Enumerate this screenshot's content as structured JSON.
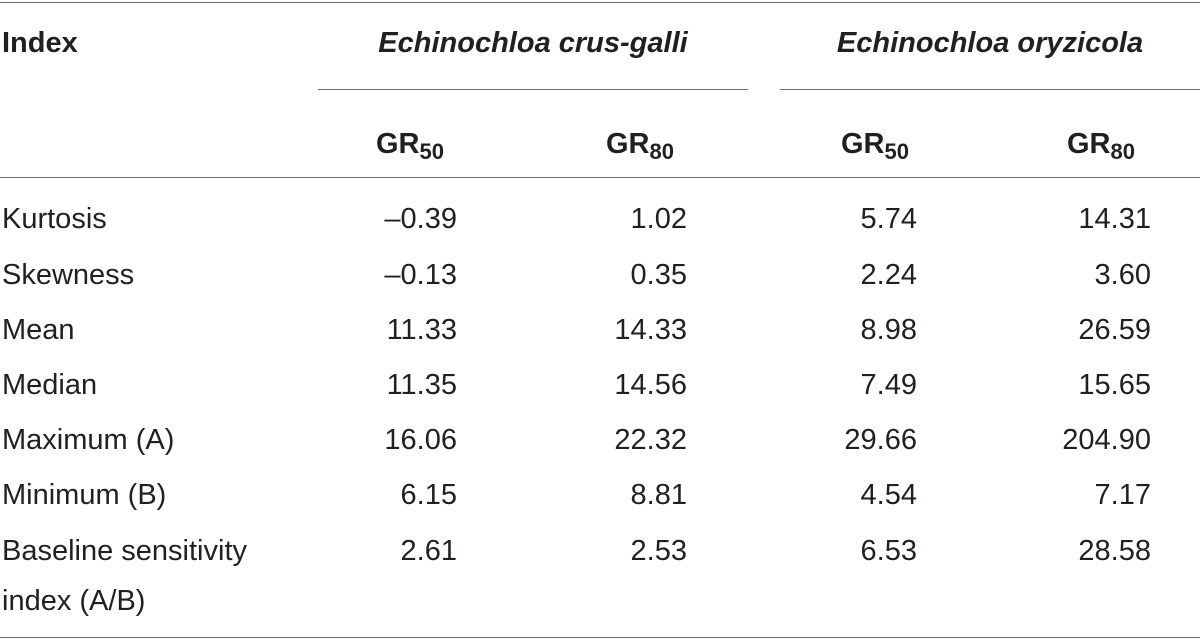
{
  "table": {
    "index_header": "Index",
    "groups": [
      {
        "name": "Echinochloa crus-galli",
        "columns": [
          {
            "base": "GR",
            "sub": "50"
          },
          {
            "base": "GR",
            "sub": "80"
          }
        ]
      },
      {
        "name": "Echinochloa oryzicola",
        "columns": [
          {
            "base": "GR",
            "sub": "50"
          },
          {
            "base": "GR",
            "sub": "80"
          }
        ]
      }
    ],
    "rows": [
      {
        "label": "Kurtosis",
        "values": [
          "–0.39",
          "1.02",
          "5.74",
          "14.31"
        ]
      },
      {
        "label": "Skewness",
        "values": [
          "–0.13",
          "0.35",
          "2.24",
          "3.60"
        ]
      },
      {
        "label": "Mean",
        "values": [
          "11.33",
          "14.33",
          "8.98",
          "26.59"
        ]
      },
      {
        "label": "Median",
        "values": [
          "11.35",
          "14.56",
          "7.49",
          "15.65"
        ]
      },
      {
        "label": "Maximum (A)",
        "values": [
          "16.06",
          "22.32",
          "29.66",
          "204.90"
        ]
      },
      {
        "label": "Minimum (B)",
        "values": [
          "6.15",
          "8.81",
          "4.54",
          "7.17"
        ]
      },
      {
        "label_lines": [
          "Baseline sensitivity",
          "index (A/B)"
        ],
        "values": [
          "2.61",
          "2.53",
          "6.53",
          "28.58"
        ]
      }
    ]
  }
}
